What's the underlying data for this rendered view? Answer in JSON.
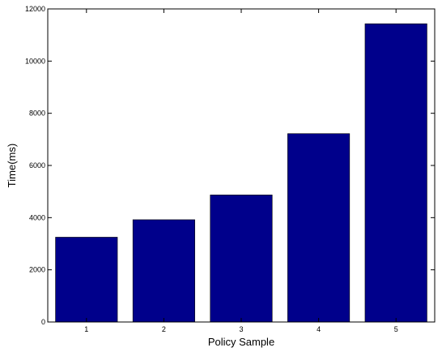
{
  "chart_data": {
    "type": "bar",
    "categories": [
      "1",
      "2",
      "3",
      "4",
      "5"
    ],
    "values": [
      3250,
      3920,
      4870,
      7220,
      11430
    ],
    "title": "",
    "xlabel": "Policy Sample",
    "ylabel": "Time(ms)",
    "ylim": [
      0,
      12000
    ],
    "yticks": [
      0,
      2000,
      4000,
      6000,
      8000,
      10000,
      12000
    ],
    "ytick_labels": [
      "0",
      "2000",
      "4000",
      "6000",
      "8000",
      "10000",
      "12000"
    ],
    "grid": false,
    "legend": "none",
    "bar_color": "#00008b"
  }
}
